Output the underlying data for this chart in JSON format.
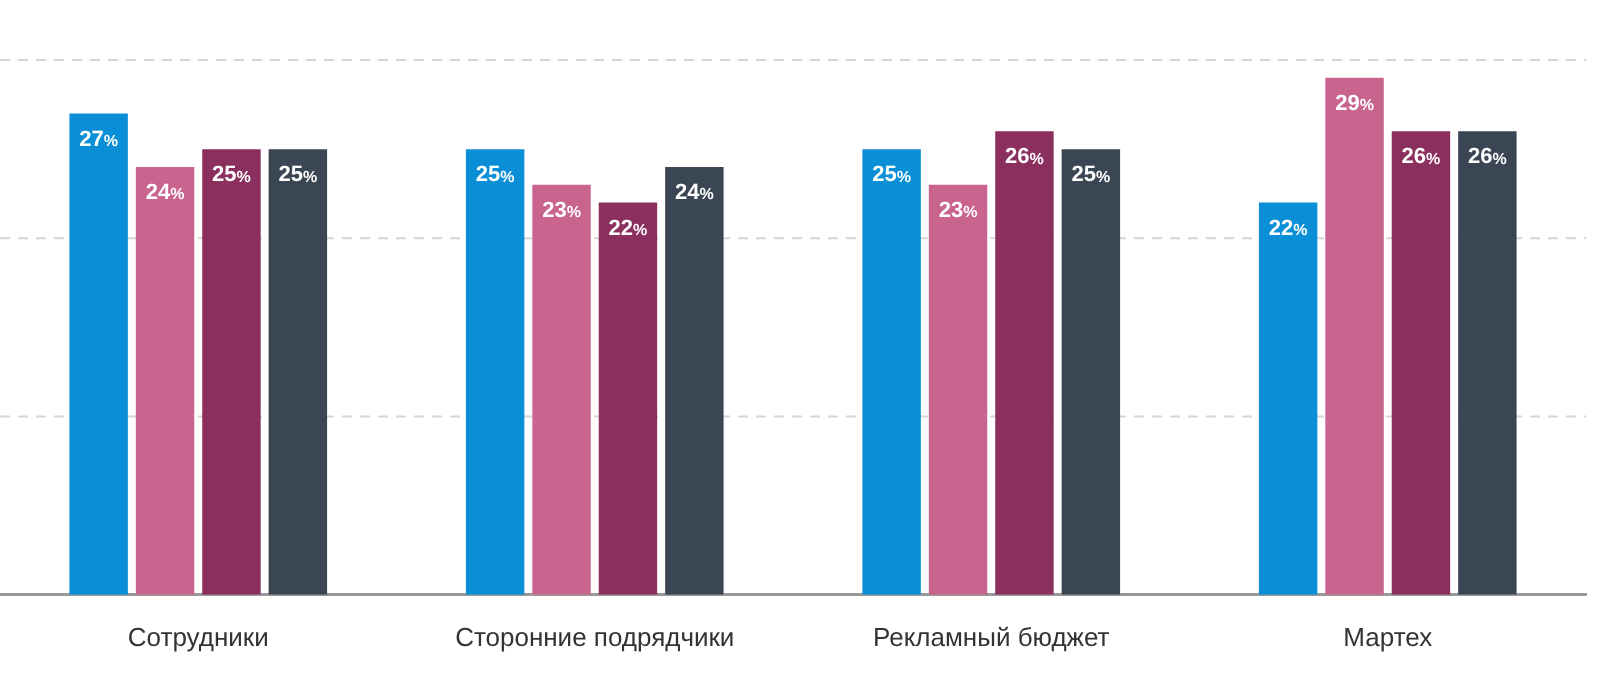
{
  "chart_data": {
    "type": "bar",
    "categories": [
      "Сотрудники",
      "Сторонние подрядчики",
      "Рекламный бюджет",
      "Мартех"
    ],
    "series": [
      {
        "color": "#0a8fd6",
        "values": [
          27,
          25,
          25,
          22
        ],
        "value_labels": [
          "27%",
          "25%",
          "25%",
          "22%"
        ]
      },
      {
        "color": "#c9648e",
        "values": [
          24,
          23,
          23,
          29
        ],
        "value_labels": [
          "24%",
          "23%",
          "23%",
          "29%"
        ]
      },
      {
        "color": "#8b2f5e",
        "values": [
          25,
          22,
          26,
          26
        ],
        "value_labels": [
          "25%",
          "22%",
          "26%",
          "26%"
        ]
      },
      {
        "color": "#3a4654",
        "values": [
          25,
          24,
          25,
          26
        ],
        "value_labels": [
          "25%",
          "24%",
          "25%",
          "26%"
        ]
      }
    ],
    "ref_lines": [
      {
        "axis": "y",
        "value": 10,
        "color": "#d6d6d6",
        "line_style": "dashed"
      },
      {
        "axis": "y",
        "value": 20,
        "color": "#d6d6d6",
        "line_style": "dashed"
      },
      {
        "axis": "y",
        "value": 30,
        "color": "#d6d6d6",
        "line_style": "dashed"
      }
    ],
    "legend": false,
    "tick_labels": "x"
  }
}
